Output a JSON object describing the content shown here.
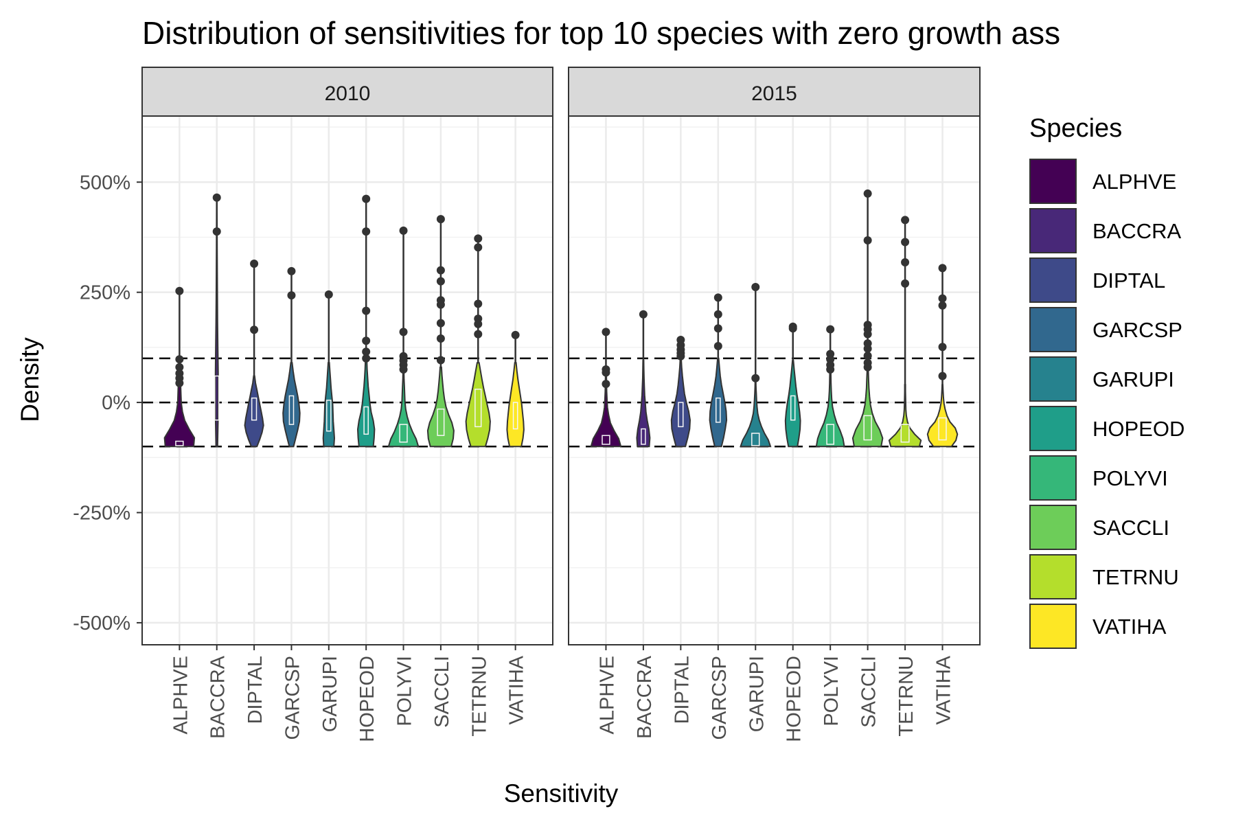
{
  "title": "Distribution of sensitivities for top 10 species with zero growth ass",
  "colors": {
    "ALPHVE": "#440154",
    "BACCRA": "#482878",
    "DIPTAL": "#3E4A89",
    "GARCSP": "#31688E",
    "GARUPI": "#26828E",
    "HOPEOD": "#1F9E89",
    "POLYVI": "#35B779",
    "SACCLI": "#6DCD59",
    "TETRNU": "#B4DE2C",
    "VATIHA": "#FDE725"
  },
  "chart_data": {
    "type": "violin",
    "title": "Distribution of sensitivities for top 10 species with zero growth ass",
    "xlabel": "Sensitivity",
    "ylabel": "Density",
    "ylim": [
      -550,
      650
    ],
    "y_ticks": [
      500,
      250,
      0,
      -250,
      -500
    ],
    "y_tick_labels": [
      "500%",
      "250%",
      "0%",
      "-250%",
      "-500%"
    ],
    "grid": true,
    "reference_lines": [
      100,
      0,
      -100
    ],
    "legend": {
      "title": "Species",
      "position": "right"
    },
    "categories": [
      "ALPHVE",
      "BACCRA",
      "DIPTAL",
      "GARCSP",
      "GARUPI",
      "HOPEOD",
      "POLYVI",
      "SACCLI",
      "TETRNU",
      "VATIHA"
    ],
    "facets": [
      {
        "label": "2010",
        "series": [
          {
            "name": "ALPHVE",
            "min": -100,
            "max": 97,
            "maxW": 0.8,
            "shape": [
              0.95,
              1,
              0.65,
              0.35,
              0.2,
              0.12,
              0.1,
              0.08,
              0.05,
              0.03,
              0.02
            ],
            "box": [
              -98,
              -95,
              -88
            ],
            "outliers": [
              253,
              98,
              80,
              66,
              55,
              44
            ]
          },
          {
            "name": "BACCRA",
            "min": -100,
            "max": 465,
            "maxW": 0.08,
            "shape": [
              0.5,
              0.8,
              1,
              0.9,
              0.7,
              0.5,
              0.4,
              0.3,
              0.2,
              0.15,
              0.1
            ],
            "box": [
              -40,
              -5,
              60
            ],
            "outliers": [
              465,
              388
            ]
          },
          {
            "name": "DIPTAL",
            "min": -100,
            "max": 60,
            "maxW": 0.5,
            "shape": [
              0.3,
              0.6,
              0.85,
              1,
              0.9,
              0.75,
              0.6,
              0.45,
              0.3,
              0.15,
              0.05
            ],
            "box": [
              -40,
              -20,
              10
            ],
            "outliers": [
              315,
              165
            ]
          },
          {
            "name": "GARCSP",
            "min": -100,
            "max": 90,
            "maxW": 0.45,
            "shape": [
              0.25,
              0.5,
              0.75,
              0.95,
              1,
              0.9,
              0.75,
              0.55,
              0.35,
              0.2,
              0.08
            ],
            "box": [
              -50,
              -15,
              15
            ],
            "outliers": [
              298,
              243
            ]
          },
          {
            "name": "GARUPI",
            "min": -100,
            "max": 90,
            "maxW": 0.3,
            "shape": [
              0.9,
              1,
              0.9,
              0.8,
              0.75,
              0.7,
              0.55,
              0.4,
              0.3,
              0.2,
              0.1
            ],
            "box": [
              -65,
              -25,
              5
            ],
            "outliers": [
              245
            ]
          },
          {
            "name": "HOPEOD",
            "min": -100,
            "max": 95,
            "maxW": 0.45,
            "shape": [
              0.85,
              0.95,
              1,
              0.85,
              0.6,
              0.45,
              0.35,
              0.25,
              0.18,
              0.12,
              0.08
            ],
            "box": [
              -72,
              -40,
              -10
            ],
            "outliers": [
              462,
              388,
              208,
              140,
              115,
              100
            ]
          },
          {
            "name": "POLYVI",
            "min": -100,
            "max": 70,
            "maxW": 0.8,
            "shape": [
              1,
              0.85,
              0.6,
              0.4,
              0.25,
              0.15,
              0.1,
              0.08,
              0.06,
              0.04,
              0.03
            ],
            "box": [
              -90,
              -75,
              -50
            ],
            "outliers": [
              390,
              160,
              105,
              95,
              85,
              75
            ]
          },
          {
            "name": "SACCLI",
            "min": -100,
            "max": 80,
            "maxW": 0.7,
            "shape": [
              0.8,
              0.95,
              1,
              0.85,
              0.6,
              0.4,
              0.28,
              0.2,
              0.14,
              0.09,
              0.05
            ],
            "box": [
              -75,
              -45,
              -15
            ],
            "outliers": [
              416,
              300,
              275,
              232,
              222,
              180,
              145,
              96
            ]
          },
          {
            "name": "TETRNU",
            "min": -100,
            "max": 90,
            "maxW": 0.65,
            "shape": [
              0.6,
              0.8,
              0.95,
              1,
              0.9,
              0.75,
              0.6,
              0.45,
              0.32,
              0.2,
              0.08
            ],
            "box": [
              -55,
              -5,
              30
            ],
            "outliers": [
              372,
              352,
              224,
              190,
              178,
              155
            ]
          },
          {
            "name": "VATIHA",
            "min": -100,
            "max": 90,
            "maxW": 0.45,
            "shape": [
              0.7,
              0.9,
              1,
              0.95,
              0.85,
              0.75,
              0.6,
              0.45,
              0.3,
              0.18,
              0.08
            ],
            "box": [
              -60,
              -30,
              0
            ],
            "outliers": [
              153
            ]
          }
        ]
      },
      {
        "label": "2015",
        "series": [
          {
            "name": "ALPHVE",
            "min": -100,
            "max": 78,
            "maxW": 0.8,
            "shape": [
              1,
              0.85,
              0.55,
              0.3,
              0.18,
              0.1,
              0.07,
              0.05,
              0.04,
              0.03,
              0.02
            ],
            "box": [
              -95,
              -88,
              -75
            ],
            "outliers": [
              160,
              75,
              68,
              42
            ]
          },
          {
            "name": "BACCRA",
            "min": -100,
            "max": 95,
            "maxW": 0.35,
            "shape": [
              0.9,
              1,
              0.85,
              0.6,
              0.4,
              0.3,
              0.2,
              0.15,
              0.1,
              0.07,
              0.05
            ],
            "box": [
              -95,
              -85,
              -60
            ],
            "outliers": [
              200
            ]
          },
          {
            "name": "DIPTAL",
            "min": -100,
            "max": 100,
            "maxW": 0.5,
            "shape": [
              0.5,
              0.75,
              0.95,
              1,
              0.85,
              0.6,
              0.4,
              0.28,
              0.18,
              0.1,
              0.05
            ],
            "box": [
              -55,
              -30,
              0
            ],
            "outliers": [
              142,
              130,
              120,
              112,
              105
            ]
          },
          {
            "name": "GARCSP",
            "min": -100,
            "max": 100,
            "maxW": 0.45,
            "shape": [
              0.4,
              0.65,
              0.85,
              1,
              0.95,
              0.8,
              0.6,
              0.4,
              0.25,
              0.15,
              0.06
            ],
            "box": [
              -45,
              -20,
              10
            ],
            "outliers": [
              238,
              200,
              168,
              128
            ]
          },
          {
            "name": "GARUPI",
            "min": -100,
            "max": 50,
            "maxW": 0.8,
            "shape": [
              1,
              0.85,
              0.6,
              0.4,
              0.25,
              0.15,
              0.1,
              0.07,
              0.05,
              0.03,
              0.02
            ],
            "box": [
              -98,
              -90,
              -70
            ],
            "outliers": [
              262,
              55
            ]
          },
          {
            "name": "HOPEOD",
            "min": -100,
            "max": 95,
            "maxW": 0.4,
            "shape": [
              0.6,
              0.8,
              0.95,
              1,
              0.9,
              0.75,
              0.55,
              0.4,
              0.28,
              0.16,
              0.06
            ],
            "box": [
              -40,
              -15,
              15
            ],
            "outliers": [
              172,
              168
            ]
          },
          {
            "name": "POLYVI",
            "min": -100,
            "max": 80,
            "maxW": 0.75,
            "shape": [
              1,
              0.9,
              0.7,
              0.45,
              0.28,
              0.16,
              0.1,
              0.07,
              0.05,
              0.04,
              0.03
            ],
            "box": [
              -95,
              -80,
              -50
            ],
            "outliers": [
              166,
              110,
              98,
              85,
              75
            ]
          },
          {
            "name": "SACCLI",
            "min": -100,
            "max": 90,
            "maxW": 0.8,
            "shape": [
              0.9,
              1,
              0.8,
              0.5,
              0.3,
              0.18,
              0.12,
              0.08,
              0.06,
              0.04,
              0.03
            ],
            "box": [
              -85,
              -60,
              -30
            ],
            "outliers": [
              474,
              368,
              176,
              166,
              155,
              134,
              122,
              106,
              90,
              80
            ]
          },
          {
            "name": "TETRNU",
            "min": -100,
            "max": 40,
            "maxW": 0.85,
            "shape": [
              0.9,
              1,
              0.6,
              0.3,
              0.15,
              0.08,
              0.05,
              0.04,
              0.03,
              0.02,
              0.02
            ],
            "box": [
              -90,
              -75,
              -50
            ],
            "outliers": [
              414,
              364,
              318,
              270
            ]
          },
          {
            "name": "VATIHA",
            "min": -100,
            "max": 40,
            "maxW": 0.8,
            "shape": [
              0.6,
              0.9,
              1,
              0.85,
              0.5,
              0.3,
              0.18,
              0.1,
              0.06,
              0.04,
              0.02
            ],
            "box": [
              -85,
              -65,
              -35
            ],
            "outliers": [
              305,
              236,
              220,
              126,
              60
            ]
          }
        ]
      }
    ]
  }
}
